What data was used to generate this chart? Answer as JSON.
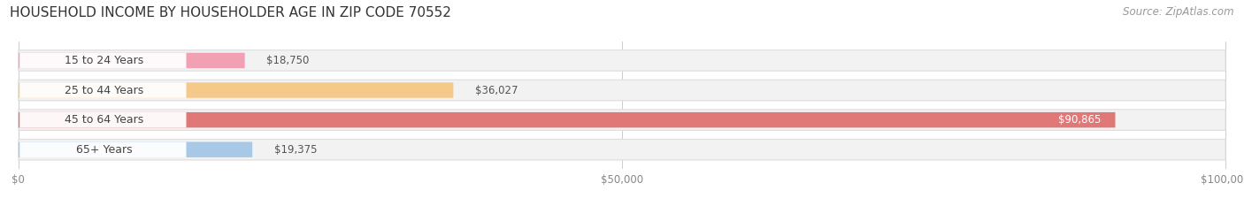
{
  "title": "HOUSEHOLD INCOME BY HOUSEHOLDER AGE IN ZIP CODE 70552",
  "source": "Source: ZipAtlas.com",
  "categories": [
    "15 to 24 Years",
    "25 to 44 Years",
    "45 to 64 Years",
    "65+ Years"
  ],
  "values": [
    18750,
    36027,
    90865,
    19375
  ],
  "bar_colors": [
    "#F2A0B4",
    "#F5C98A",
    "#E07878",
    "#A8C8E8"
  ],
  "track_color": "#F2F2F2",
  "track_edge_color": "#DDDDDD",
  "xlim": [
    0,
    100000
  ],
  "xtick_values": [
    0,
    50000,
    100000
  ],
  "xtick_labels": [
    "$0",
    "$50,000",
    "$100,000"
  ],
  "title_fontsize": 11,
  "source_fontsize": 8.5,
  "bar_label_fontsize": 8.5,
  "tick_fontsize": 8.5,
  "category_fontsize": 9
}
